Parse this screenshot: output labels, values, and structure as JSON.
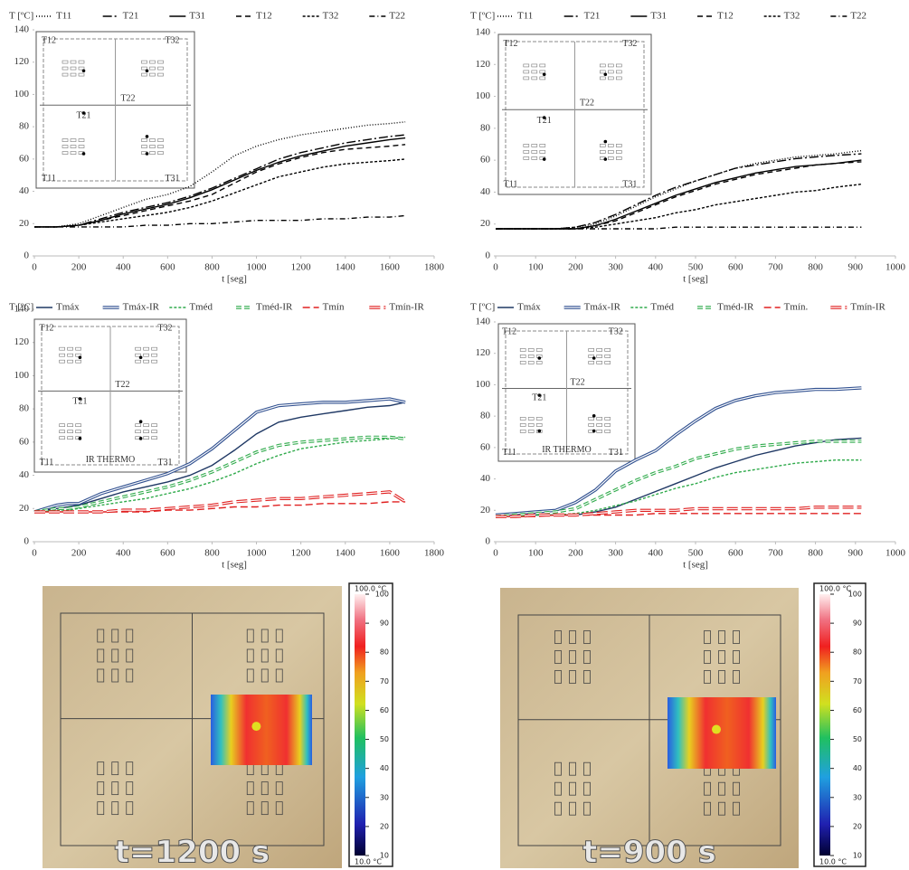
{
  "chart_data": [
    {
      "type": "line",
      "ylabel": "T [ºC]",
      "xlabel": "t [seg]",
      "xlim": [
        0,
        1800
      ],
      "xticks": [
        0,
        200,
        400,
        600,
        800,
        1000,
        1200,
        1400,
        1600,
        1800
      ],
      "ylim": [
        0,
        140
      ],
      "yticks": [
        0,
        20,
        40,
        60,
        80,
        100,
        120,
        140
      ],
      "inset_labels": [
        "T12",
        "T32",
        "T22",
        "T21",
        "T11",
        "T31"
      ],
      "x": [
        0,
        100,
        200,
        300,
        400,
        500,
        600,
        700,
        800,
        900,
        1000,
        1100,
        1200,
        1300,
        1400,
        1500,
        1600,
        1670
      ],
      "series": [
        {
          "name": "T11",
          "color": "#000000",
          "dash": "1 2",
          "values": [
            18,
            18,
            20,
            25,
            30,
            35,
            38,
            43,
            52,
            62,
            68,
            72,
            75,
            77,
            79,
            81,
            82,
            83
          ]
        },
        {
          "name": "T21",
          "color": "#000000",
          "dash": "10 3 2 3",
          "values": [
            18,
            18,
            19,
            23,
            27,
            30,
            33,
            37,
            42,
            48,
            54,
            60,
            64,
            67,
            70,
            72,
            74,
            75
          ]
        },
        {
          "name": "T31",
          "color": "#000000",
          "dash": "none",
          "values": [
            18,
            18,
            19,
            22,
            26,
            29,
            32,
            36,
            41,
            47,
            53,
            58,
            62,
            65,
            68,
            70,
            72,
            73
          ]
        },
        {
          "name": "T12",
          "color": "#000000",
          "dash": "6 4",
          "values": [
            18,
            18,
            19,
            22,
            25,
            28,
            31,
            34,
            38,
            45,
            52,
            57,
            61,
            64,
            66,
            67,
            68,
            69
          ]
        },
        {
          "name": "T32",
          "color": "#000000",
          "dash": "3 2",
          "values": [
            18,
            18,
            19,
            21,
            23,
            25,
            27,
            30,
            34,
            39,
            44,
            49,
            52,
            55,
            57,
            58,
            59,
            60
          ]
        },
        {
          "name": "T22",
          "color": "#000000",
          "dash": "6 3 1 3",
          "values": [
            18,
            18,
            18,
            18,
            18,
            19,
            19,
            20,
            20,
            21,
            22,
            22,
            22,
            23,
            23,
            24,
            24,
            25
          ]
        }
      ]
    },
    {
      "type": "line",
      "ylabel": "T [ºC]",
      "xlabel": "t [seg]",
      "xlim": [
        0,
        1000
      ],
      "xticks": [
        0,
        100,
        200,
        300,
        400,
        500,
        600,
        700,
        800,
        900,
        1000
      ],
      "ylim": [
        0,
        140
      ],
      "yticks": [
        0,
        20,
        40,
        60,
        80,
        100,
        120,
        140
      ],
      "inset_labels": [
        "T12",
        "T32",
        "T22",
        "T21",
        "T11",
        "T31"
      ],
      "x": [
        0,
        50,
        100,
        150,
        200,
        250,
        300,
        350,
        400,
        450,
        500,
        550,
        600,
        650,
        700,
        750,
        800,
        850,
        915
      ],
      "series": [
        {
          "name": "T11",
          "color": "#000000",
          "dash": "1 2",
          "values": [
            17,
            17,
            17,
            17,
            18,
            20,
            25,
            31,
            37,
            42,
            47,
            51,
            55,
            58,
            60,
            62,
            63,
            64,
            66
          ]
        },
        {
          "name": "T21",
          "color": "#000000",
          "dash": "10 3 2 3",
          "values": [
            17,
            17,
            17,
            17,
            18,
            21,
            26,
            32,
            38,
            43,
            47,
            51,
            55,
            57,
            59,
            61,
            62,
            63,
            64
          ]
        },
        {
          "name": "T31",
          "color": "#000000",
          "dash": "none",
          "values": [
            17,
            17,
            17,
            17,
            17,
            19,
            23,
            28,
            33,
            38,
            42,
            46,
            49,
            52,
            54,
            56,
            57,
            58,
            60
          ]
        },
        {
          "name": "T12",
          "color": "#000000",
          "dash": "6 4",
          "values": [
            17,
            17,
            17,
            17,
            17,
            19,
            22,
            27,
            32,
            37,
            41,
            45,
            48,
            51,
            53,
            55,
            57,
            58,
            59
          ]
        },
        {
          "name": "T32",
          "color": "#000000",
          "dash": "3 2",
          "values": [
            17,
            17,
            17,
            17,
            17,
            18,
            20,
            22,
            24,
            27,
            29,
            32,
            34,
            36,
            38,
            40,
            41,
            43,
            45
          ]
        },
        {
          "name": "T22",
          "color": "#000000",
          "dash": "6 3 1 3",
          "values": [
            17,
            17,
            17,
            17,
            17,
            17,
            17,
            17,
            17,
            18,
            18,
            18,
            18,
            18,
            18,
            18,
            18,
            18,
            18
          ]
        }
      ]
    },
    {
      "type": "line",
      "ylabel": "T [ºC]",
      "xlabel": "t [seg]",
      "xlim": [
        0,
        1800
      ],
      "xticks": [
        0,
        200,
        400,
        600,
        800,
        1000,
        1200,
        1400,
        1600,
        1800
      ],
      "ylim": [
        0,
        140
      ],
      "yticks": [
        0,
        20,
        40,
        60,
        80,
        100,
        120,
        140
      ],
      "inset_labels": [
        "T12",
        "T32",
        "T22",
        "T21",
        "T11",
        "T31",
        "IR THERMO"
      ],
      "x": [
        0,
        100,
        150,
        200,
        300,
        400,
        500,
        600,
        700,
        800,
        900,
        1000,
        1100,
        1200,
        1300,
        1400,
        1500,
        1600,
        1670
      ],
      "series": [
        {
          "name": "Tmáx",
          "color": "#1f3864",
          "dash": "none",
          "double": false,
          "values": [
            18,
            20,
            21,
            22,
            26,
            30,
            33,
            36,
            40,
            46,
            55,
            65,
            72,
            75,
            77,
            79,
            81,
            82,
            84
          ]
        },
        {
          "name": "Tmáx-IR",
          "color": "#2f4f8f",
          "dash": "none",
          "double": true,
          "values": [
            18,
            22,
            23,
            23,
            29,
            33,
            37,
            41,
            47,
            56,
            67,
            78,
            82,
            83,
            84,
            84,
            85,
            86,
            84
          ]
        },
        {
          "name": "Tméd",
          "color": "#2eaa4a",
          "dash": "3 2",
          "double": false,
          "values": [
            18,
            19,
            19,
            20,
            22,
            24,
            26,
            29,
            32,
            36,
            41,
            47,
            52,
            56,
            58,
            60,
            61,
            62,
            63
          ]
        },
        {
          "name": "Tméd-IR",
          "color": "#2eaa4a",
          "dash": "6 3",
          "double": true,
          "values": [
            18,
            20,
            20,
            21,
            24,
            27,
            30,
            33,
            37,
            42,
            48,
            54,
            58,
            60,
            61,
            62,
            63,
            63,
            62
          ]
        },
        {
          "name": "Tmín",
          "color": "#e02020",
          "dash": "8 4",
          "double": false,
          "values": [
            18,
            18,
            18,
            18,
            18,
            18,
            18,
            19,
            19,
            20,
            21,
            21,
            22,
            22,
            23,
            23,
            23,
            24,
            24
          ]
        },
        {
          "name": "Tmín-IR",
          "color": "#e02020",
          "dash": "12 4",
          "double": true,
          "values": [
            18,
            18,
            18,
            18,
            18,
            19,
            19,
            20,
            21,
            22,
            24,
            25,
            26,
            26,
            27,
            28,
            29,
            30,
            24
          ]
        }
      ]
    },
    {
      "type": "line",
      "ylabel": "T [ºC]",
      "xlabel": "t [seg]",
      "xlim": [
        0,
        1000
      ],
      "xticks": [
        0,
        100,
        200,
        300,
        400,
        500,
        600,
        700,
        800,
        900,
        1000
      ],
      "ylim": [
        0,
        140
      ],
      "yticks": [
        0,
        20,
        40,
        60,
        80,
        100,
        120,
        140
      ],
      "inset_labels": [
        "T12",
        "T32",
        "T22",
        "T21",
        "T11",
        "T31",
        "IR THERMO"
      ],
      "x": [
        0,
        50,
        100,
        150,
        200,
        250,
        300,
        350,
        400,
        450,
        500,
        550,
        600,
        650,
        700,
        750,
        800,
        850,
        915
      ],
      "series": [
        {
          "name": "Tmáx",
          "color": "#1f3864",
          "dash": "none",
          "double": false,
          "values": [
            16,
            16,
            17,
            17,
            17,
            19,
            22,
            27,
            32,
            37,
            42,
            47,
            51,
            55,
            58,
            61,
            63,
            65,
            66
          ]
        },
        {
          "name": "Tmáx-IR",
          "color": "#2f4f8f",
          "dash": "none",
          "double": true,
          "values": [
            17,
            18,
            19,
            20,
            25,
            33,
            45,
            52,
            58,
            68,
            77,
            85,
            90,
            93,
            95,
            96,
            97,
            97,
            98
          ]
        },
        {
          "name": "Tméd",
          "color": "#2eaa4a",
          "dash": "3 2",
          "double": false,
          "values": [
            16,
            16,
            17,
            17,
            18,
            20,
            23,
            26,
            30,
            34,
            37,
            41,
            44,
            46,
            48,
            50,
            51,
            52,
            52
          ]
        },
        {
          "name": "Tméd-IR",
          "color": "#2eaa4a",
          "dash": "6 3",
          "double": true,
          "values": [
            16,
            17,
            18,
            19,
            21,
            27,
            33,
            39,
            44,
            48,
            53,
            56,
            59,
            61,
            62,
            63,
            64,
            64,
            64
          ]
        },
        {
          "name": "Tmín.",
          "color": "#e02020",
          "dash": "8 4",
          "double": false,
          "values": [
            16,
            16,
            16,
            17,
            17,
            17,
            17,
            17,
            18,
            18,
            18,
            18,
            18,
            18,
            18,
            18,
            18,
            18,
            18
          ]
        },
        {
          "name": "Tmín-IR",
          "color": "#e02020",
          "dash": "12 4",
          "double": true,
          "values": [
            16,
            16,
            17,
            17,
            17,
            18,
            19,
            20,
            20,
            20,
            21,
            21,
            21,
            21,
            21,
            21,
            22,
            22,
            22
          ]
        }
      ]
    }
  ],
  "images": [
    {
      "caption": "t=1200 s",
      "colorbar": {
        "top_label": "100.0 °C",
        "bottom_label": "10.0 °C",
        "ticks": [
          10,
          20,
          30,
          40,
          50,
          60,
          70,
          80,
          90,
          100
        ],
        "range": [
          10,
          100
        ]
      }
    },
    {
      "caption": "t=900 s",
      "colorbar": {
        "top_label": "100.0 °C",
        "bottom_label": "10.0 °C",
        "ticks": [
          10,
          20,
          30,
          40,
          50,
          60,
          70,
          80,
          90,
          100
        ],
        "range": [
          10,
          100
        ]
      }
    }
  ]
}
